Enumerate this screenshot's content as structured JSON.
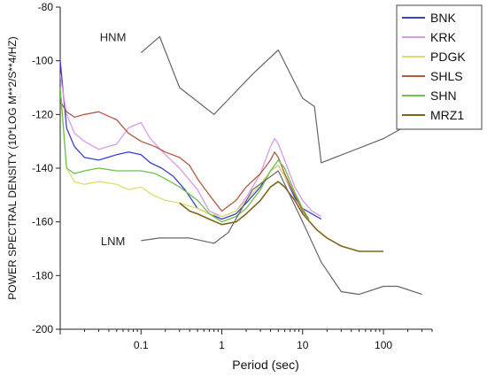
{
  "chart_data": {
    "type": "line",
    "title": "",
    "xlabel": "Period (sec)",
    "ylabel": "POWER SPECTRAL DENSITY (10*LOG M**2/S**4/HZ)",
    "x_scale": "log",
    "xlim": [
      0.01,
      400
    ],
    "ylim": [
      -200,
      -80
    ],
    "x_ticks": [
      0.1,
      1,
      10,
      100
    ],
    "x_tick_labels": [
      "0.1",
      "1",
      "10",
      "100"
    ],
    "y_ticks": [
      -80,
      -100,
      -120,
      -140,
      -160,
      -180,
      -200
    ],
    "y_tick_labels": [
      "-80",
      "-100",
      "-120",
      "-140",
      "-160",
      "-180",
      "-200"
    ],
    "legend_position": "top-right",
    "annotations": [
      {
        "text": "HNM",
        "x": 0.045,
        "y": -91
      },
      {
        "text": "LNM",
        "x": 0.045,
        "y": -167
      }
    ],
    "series": [
      {
        "name": "BNK",
        "color": "#3b3fcf",
        "points": [
          [
            0.01,
            -100
          ],
          [
            0.012,
            -125
          ],
          [
            0.015,
            -132
          ],
          [
            0.02,
            -136
          ],
          [
            0.03,
            -137
          ],
          [
            0.05,
            -135
          ],
          [
            0.07,
            -134
          ],
          [
            0.1,
            -135
          ],
          [
            0.13,
            -138
          ],
          [
            0.18,
            -140
          ],
          [
            0.25,
            -143
          ],
          [
            0.35,
            -148
          ],
          [
            0.5,
            -155
          ],
          [
            0.7,
            -157
          ],
          [
            1,
            -159
          ],
          [
            1.5,
            -157
          ],
          [
            2,
            -153
          ],
          [
            3,
            -147
          ],
          [
            4,
            -141
          ],
          [
            5,
            -139
          ],
          [
            6,
            -143
          ],
          [
            8,
            -151
          ],
          [
            10,
            -155
          ],
          [
            13,
            -157
          ],
          [
            17,
            -159
          ]
        ]
      },
      {
        "name": "KRK",
        "color": "#d89be8",
        "points": [
          [
            0.01,
            -105
          ],
          [
            0.012,
            -120
          ],
          [
            0.015,
            -127
          ],
          [
            0.02,
            -130
          ],
          [
            0.03,
            -133
          ],
          [
            0.05,
            -131
          ],
          [
            0.07,
            -125
          ],
          [
            0.1,
            -123
          ],
          [
            0.13,
            -129
          ],
          [
            0.2,
            -135
          ],
          [
            0.3,
            -140
          ],
          [
            0.5,
            -148
          ],
          [
            0.7,
            -156
          ],
          [
            1,
            -158
          ],
          [
            1.5,
            -156
          ],
          [
            2,
            -151
          ],
          [
            3,
            -142
          ],
          [
            4,
            -132
          ],
          [
            4.5,
            -129
          ],
          [
            5,
            -131
          ],
          [
            6,
            -137
          ],
          [
            8,
            -147
          ],
          [
            10,
            -152
          ],
          [
            13,
            -156
          ],
          [
            17,
            -158
          ]
        ]
      },
      {
        "name": "PDGK",
        "color": "#dede6a",
        "points": [
          [
            0.01,
            -110
          ],
          [
            0.012,
            -140
          ],
          [
            0.015,
            -145
          ],
          [
            0.02,
            -146
          ],
          [
            0.03,
            -145
          ],
          [
            0.05,
            -146
          ],
          [
            0.07,
            -148
          ],
          [
            0.1,
            -147
          ],
          [
            0.14,
            -150
          ],
          [
            0.2,
            -152
          ],
          [
            0.3,
            -153
          ],
          [
            0.5,
            -155
          ],
          [
            0.7,
            -157
          ],
          [
            1,
            -158
          ],
          [
            1.5,
            -156
          ],
          [
            2,
            -152
          ],
          [
            3,
            -146
          ],
          [
            4,
            -141
          ],
          [
            5,
            -139
          ],
          [
            6,
            -143
          ],
          [
            8,
            -150
          ],
          [
            10,
            -155
          ]
        ]
      },
      {
        "name": "SHLS",
        "color": "#b05a44",
        "points": [
          [
            0.01,
            -115
          ],
          [
            0.012,
            -119
          ],
          [
            0.015,
            -121
          ],
          [
            0.02,
            -120
          ],
          [
            0.03,
            -119
          ],
          [
            0.05,
            -122
          ],
          [
            0.07,
            -127
          ],
          [
            0.1,
            -130
          ],
          [
            0.15,
            -132
          ],
          [
            0.2,
            -134
          ],
          [
            0.3,
            -136
          ],
          [
            0.4,
            -139
          ],
          [
            0.5,
            -144
          ],
          [
            0.7,
            -150
          ],
          [
            1,
            -156
          ],
          [
            1.5,
            -152
          ],
          [
            2,
            -147
          ],
          [
            3,
            -142
          ],
          [
            4,
            -137
          ],
          [
            4.5,
            -134
          ],
          [
            5,
            -136
          ],
          [
            6,
            -142
          ],
          [
            8,
            -150
          ],
          [
            10,
            -156
          ],
          [
            12,
            -159
          ]
        ]
      },
      {
        "name": "SHN",
        "color": "#6cc24a",
        "points": [
          [
            0.01,
            -110
          ],
          [
            0.012,
            -140
          ],
          [
            0.015,
            -142
          ],
          [
            0.02,
            -141
          ],
          [
            0.03,
            -140
          ],
          [
            0.05,
            -141
          ],
          [
            0.07,
            -141
          ],
          [
            0.1,
            -141
          ],
          [
            0.15,
            -142
          ],
          [
            0.2,
            -144
          ],
          [
            0.3,
            -147
          ],
          [
            0.5,
            -152
          ],
          [
            0.7,
            -157
          ],
          [
            1,
            -160
          ],
          [
            1.5,
            -158
          ],
          [
            2,
            -155
          ],
          [
            3,
            -148
          ],
          [
            4,
            -141
          ],
          [
            5,
            -137
          ],
          [
            6,
            -140
          ],
          [
            8,
            -149
          ],
          [
            10,
            -155
          ],
          [
            12,
            -159
          ]
        ]
      },
      {
        "name": "MRZ1",
        "color": "#806417",
        "points": [
          [
            0.3,
            -153
          ],
          [
            0.4,
            -156
          ],
          [
            0.5,
            -157
          ],
          [
            0.7,
            -159
          ],
          [
            1,
            -161
          ],
          [
            1.5,
            -160
          ],
          [
            2,
            -157
          ],
          [
            3,
            -152
          ],
          [
            4,
            -147
          ],
          [
            5,
            -145
          ],
          [
            6,
            -147
          ],
          [
            8,
            -152
          ],
          [
            10,
            -157
          ],
          [
            15,
            -163
          ],
          [
            20,
            -166
          ],
          [
            30,
            -169
          ],
          [
            50,
            -171
          ],
          [
            100,
            -171
          ]
        ]
      },
      {
        "name": "HNM",
        "color": "#666666",
        "points": [
          [
            0.1,
            -97
          ],
          [
            0.17,
            -91
          ],
          [
            0.3,
            -110
          ],
          [
            0.8,
            -120
          ],
          [
            2.4,
            -105
          ],
          [
            5,
            -96
          ],
          [
            10,
            -114
          ],
          [
            14,
            -117
          ],
          [
            17,
            -138
          ],
          [
            100,
            -129
          ],
          [
            300,
            -121
          ]
        ]
      },
      {
        "name": "LNM",
        "color": "#666666",
        "points": [
          [
            0.1,
            -167
          ],
          [
            0.17,
            -166
          ],
          [
            0.4,
            -166
          ],
          [
            0.8,
            -168
          ],
          [
            1.2,
            -164
          ],
          [
            2.4,
            -148
          ],
          [
            5,
            -141
          ],
          [
            10,
            -160
          ],
          [
            17,
            -175
          ],
          [
            30,
            -186
          ],
          [
            50,
            -187
          ],
          [
            100,
            -184
          ],
          [
            150,
            -184
          ],
          [
            300,
            -187
          ]
        ]
      }
    ]
  }
}
